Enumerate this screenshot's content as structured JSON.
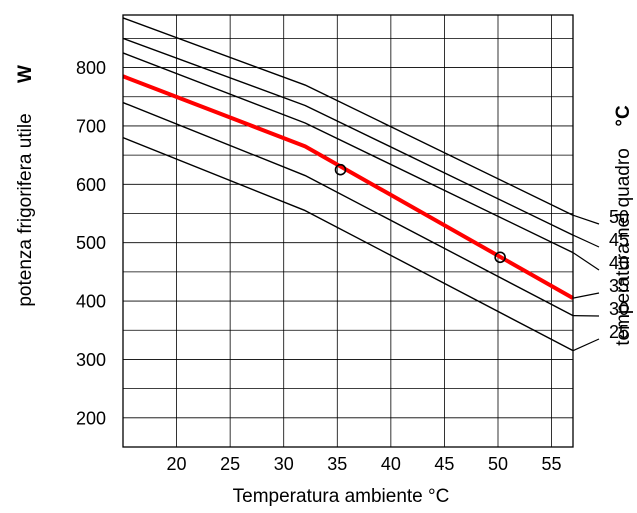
{
  "chart_data": {
    "type": "line",
    "xlabel": "Temperatura ambiente °C",
    "ylabel": "potenza frigorifera utile",
    "yunit": "W",
    "right_label": "temperatura nel quadro",
    "right_unit": "°C",
    "xlim": [
      15,
      57
    ],
    "ylim": [
      150,
      890
    ],
    "xticks": [
      "20",
      "25",
      "30",
      "35",
      "40",
      "45",
      "50",
      "55"
    ],
    "yticks": [
      "200",
      "300",
      "400",
      "500",
      "600",
      "700",
      "800"
    ],
    "grid": true,
    "series": [
      {
        "name": "50",
        "color": "#000000",
        "x": [
          15,
          32,
          57
        ],
        "y": [
          885,
          770,
          547
        ]
      },
      {
        "name": "45",
        "color": "#000000",
        "x": [
          15,
          32,
          57
        ],
        "y": [
          850,
          735,
          513
        ]
      },
      {
        "name": "40",
        "color": "#000000",
        "x": [
          15,
          32,
          57
        ],
        "y": [
          825,
          705,
          483
        ]
      },
      {
        "name": "35",
        "color": "#ff0000",
        "x": [
          15,
          32,
          57
        ],
        "y": [
          785,
          665,
          405
        ]
      },
      {
        "name": "30",
        "color": "#000000",
        "x": [
          15,
          32,
          57
        ],
        "y": [
          740,
          615,
          375
        ]
      },
      {
        "name": "25",
        "color": "#000000",
        "x": [
          15,
          32,
          57
        ],
        "y": [
          680,
          555,
          315
        ]
      }
    ],
    "markers": [
      {
        "x": 35.3,
        "y": 625
      },
      {
        "x": 50.2,
        "y": 475
      }
    ]
  }
}
